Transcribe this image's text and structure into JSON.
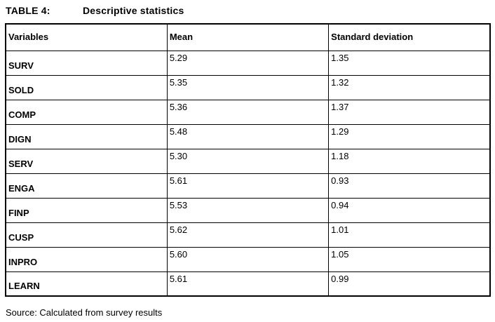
{
  "page": {
    "title_label": "TABLE 4:",
    "title_text": "Descriptive statistics",
    "source_note": "Source: Calculated from survey results"
  },
  "table": {
    "columns": [
      "Variables",
      "Mean",
      "Standard deviation"
    ],
    "rows": [
      {
        "variable": "SURV",
        "mean": "5.29",
        "sd": "1.35"
      },
      {
        "variable": "SOLD",
        "mean": "5.35",
        "sd": "1.32"
      },
      {
        "variable": "COMP",
        "mean": "5.36",
        "sd": "1.37"
      },
      {
        "variable": "DIGN",
        "mean": "5.48",
        "sd": "1.29"
      },
      {
        "variable": "SERV",
        "mean": "5.30",
        "sd": "1.18"
      },
      {
        "variable": "ENGA",
        "mean": "5.61",
        "sd": "0.93"
      },
      {
        "variable": "FINP",
        "mean": "5.53",
        "sd": "0.94"
      },
      {
        "variable": "CUSP",
        "mean": "5.62",
        "sd": "1.01"
      },
      {
        "variable": "INPRO",
        "mean": "5.60",
        "sd": "1.05"
      },
      {
        "variable": "LEARN",
        "mean": "5.61",
        "sd": "0.99"
      }
    ]
  },
  "colors": {
    "text": "#000000",
    "border": "#000000",
    "background": "#ffffff"
  }
}
